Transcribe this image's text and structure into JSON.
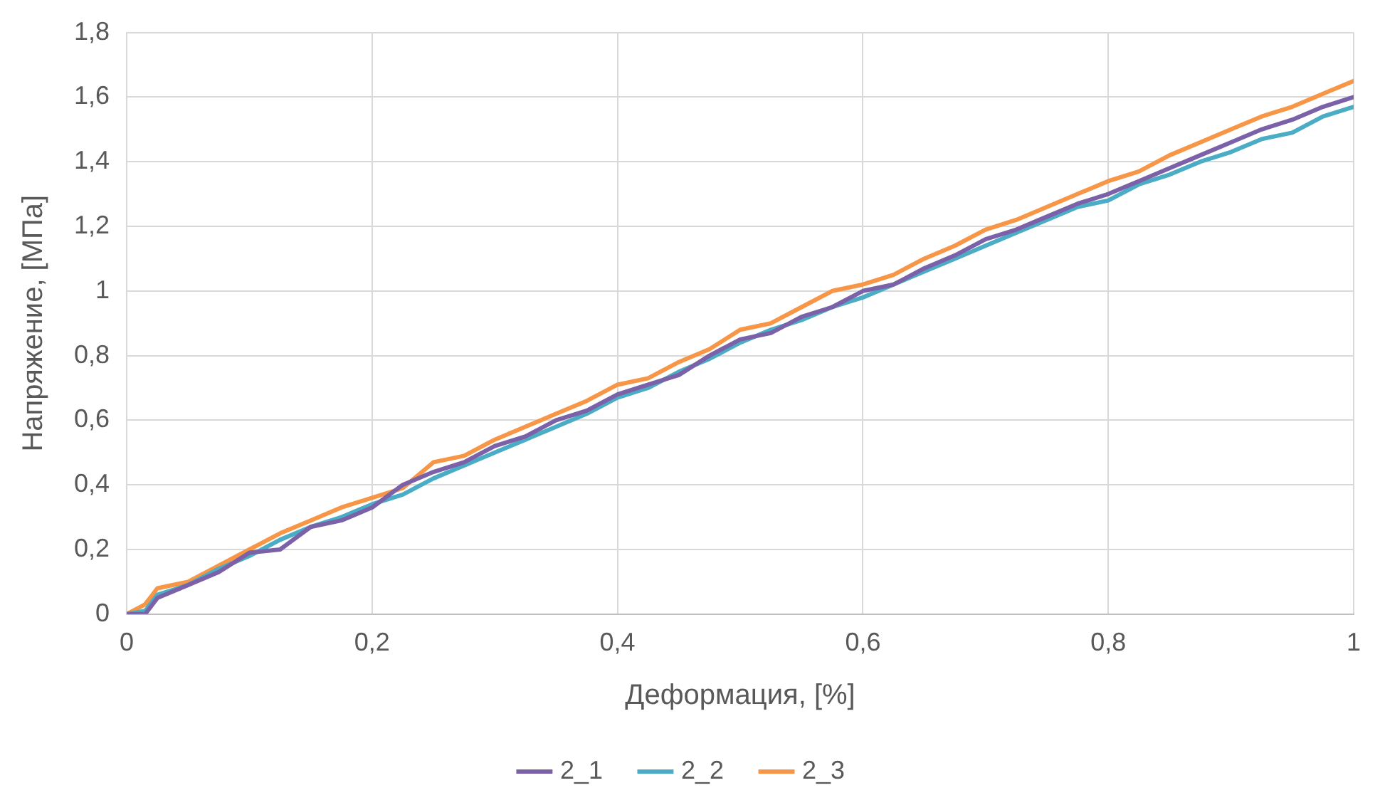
{
  "chart_data": {
    "type": "line",
    "xlabel": "Деформация, [%]",
    "ylabel": "Напряжение, [МПа]",
    "x": [
      0,
      0.015,
      0.025,
      0.05,
      0.075,
      0.1,
      0.125,
      0.15,
      0.175,
      0.2,
      0.225,
      0.25,
      0.275,
      0.3,
      0.325,
      0.35,
      0.375,
      0.4,
      0.425,
      0.45,
      0.475,
      0.5,
      0.525,
      0.55,
      0.575,
      0.6,
      0.625,
      0.65,
      0.675,
      0.7,
      0.725,
      0.75,
      0.775,
      0.8,
      0.825,
      0.85,
      0.875,
      0.9,
      0.925,
      0.95,
      0.975,
      1
    ],
    "series": [
      {
        "name": "2_1",
        "color": "#7b62a8",
        "values": [
          0,
          0,
          0.05,
          0.09,
          0.13,
          0.19,
          0.2,
          0.27,
          0.29,
          0.33,
          0.4,
          0.44,
          0.47,
          0.52,
          0.55,
          0.6,
          0.63,
          0.68,
          0.71,
          0.74,
          0.8,
          0.85,
          0.87,
          0.92,
          0.95,
          1.0,
          1.02,
          1.07,
          1.11,
          1.16,
          1.19,
          1.23,
          1.27,
          1.3,
          1.34,
          1.38,
          1.42,
          1.46,
          1.5,
          1.53,
          1.57,
          1.6
        ]
      },
      {
        "name": "2_2",
        "color": "#4bacc6",
        "values": [
          0,
          0.01,
          0.06,
          0.09,
          0.14,
          0.18,
          0.23,
          0.27,
          0.3,
          0.34,
          0.37,
          0.42,
          0.46,
          0.5,
          0.54,
          0.58,
          0.62,
          0.67,
          0.7,
          0.75,
          0.79,
          0.84,
          0.88,
          0.91,
          0.95,
          0.98,
          1.02,
          1.06,
          1.1,
          1.14,
          1.18,
          1.22,
          1.26,
          1.28,
          1.33,
          1.36,
          1.4,
          1.43,
          1.47,
          1.49,
          1.54,
          1.57
        ]
      },
      {
        "name": "2_3",
        "color": "#f79646",
        "values": [
          0,
          0.03,
          0.08,
          0.1,
          0.15,
          0.2,
          0.25,
          0.29,
          0.33,
          0.36,
          0.39,
          0.47,
          0.49,
          0.54,
          0.58,
          0.62,
          0.66,
          0.71,
          0.73,
          0.78,
          0.82,
          0.88,
          0.9,
          0.95,
          1.0,
          1.02,
          1.05,
          1.1,
          1.14,
          1.19,
          1.22,
          1.26,
          1.3,
          1.34,
          1.37,
          1.42,
          1.46,
          1.5,
          1.54,
          1.57,
          1.61,
          1.65
        ]
      }
    ],
    "xlim": [
      0,
      1
    ],
    "xticks": [
      0,
      {
        "value": 0.2,
        "label": "0,2"
      },
      {
        "value": 0.4,
        "label": "0,4"
      },
      {
        "value": 0.6,
        "label": "0,6"
      },
      {
        "value": 0.8,
        "label": "0,8"
      },
      1
    ],
    "ylim": [
      0,
      1.8
    ],
    "yticks": [
      0,
      {
        "value": 0.2,
        "label": "0,2"
      },
      {
        "value": 0.4,
        "label": "0,4"
      },
      {
        "value": 0.6,
        "label": "0,6"
      },
      {
        "value": 0.8,
        "label": "0,8"
      },
      1,
      {
        "value": 1.2,
        "label": "1,2"
      },
      {
        "value": 1.4,
        "label": "1,4"
      },
      {
        "value": 1.6,
        "label": "1,6"
      },
      {
        "value": 1.8,
        "label": "1,8"
      }
    ],
    "grid": true,
    "legend": "bottom",
    "marker": "none",
    "line_style": "solid"
  }
}
